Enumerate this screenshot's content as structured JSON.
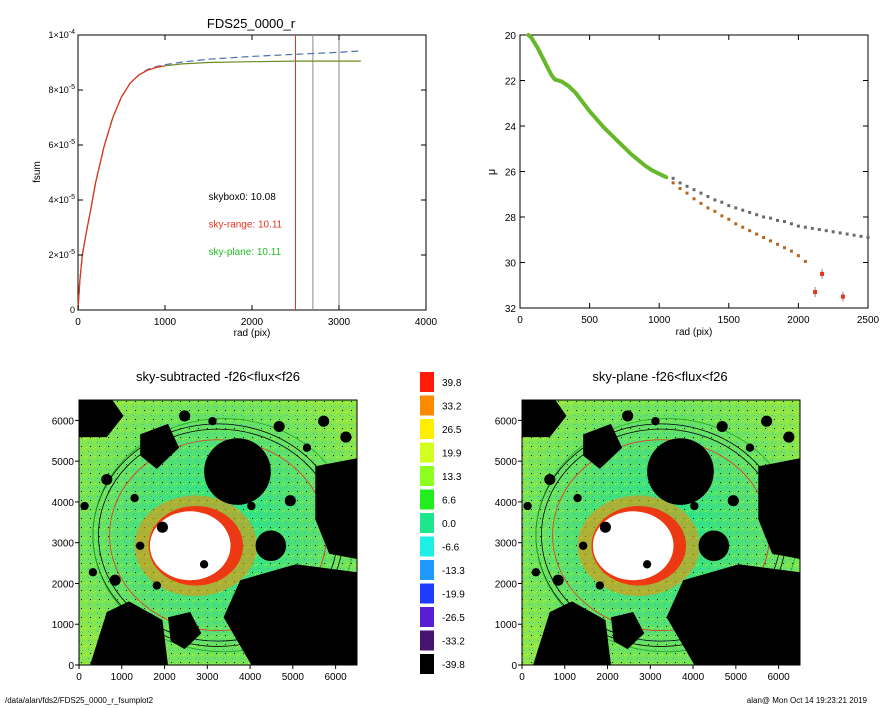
{
  "footer": {
    "path": "/data/alan/fds2/FDS25_0000_r_fsumplot2",
    "user_time": "alan@  Mon Oct 14 19:23:21 2019"
  },
  "chart_data": [
    {
      "type": "line",
      "title": "FDS25_0000_r",
      "xlabel": "rad (pix)",
      "ylabel": "fsum",
      "xlim": [
        0,
        4000
      ],
      "ylim": [
        0,
        0.0001
      ],
      "x_ticks": [
        "0",
        "1000",
        "2000",
        "3000",
        "4000"
      ],
      "y_ticks": [
        {
          "value": 0,
          "label": "0"
        },
        {
          "value": 2e-05,
          "label": "2×10",
          "exp": "-5"
        },
        {
          "value": 4e-05,
          "label": "4×10",
          "exp": "-5"
        },
        {
          "value": 6e-05,
          "label": "6×10",
          "exp": "-5"
        },
        {
          "value": 8e-05,
          "label": "8×10",
          "exp": "-5"
        },
        {
          "value": 0.0001,
          "label": "1×10",
          "exp": "-4"
        }
      ],
      "series": [
        {
          "style": "dashed",
          "color": "#4a6fb5",
          "x": [
            0,
            20,
            50,
            100,
            150,
            200,
            300,
            400,
            500,
            600,
            700,
            800,
            900,
            1000,
            1200,
            1500,
            2000,
            2500,
            3000,
            3250
          ],
          "y": [
            0,
            1e-05,
            2e-05,
            2.9e-05,
            3.7e-05,
            4.6e-05,
            5.95e-05,
            7e-05,
            7.75e-05,
            8.25e-05,
            8.55e-05,
            8.75e-05,
            8.85e-05,
            8.92e-05,
            9.02e-05,
            9.12e-05,
            9.22e-05,
            9.3e-05,
            9.37e-05,
            9.42e-05
          ]
        },
        {
          "style": "solid",
          "color": "#6b8e23",
          "x": [
            0,
            20,
            50,
            100,
            150,
            200,
            300,
            400,
            500,
            600,
            700,
            800,
            900,
            1000,
            1200,
            1500,
            2000,
            2500,
            3000,
            3250
          ],
          "y": [
            0,
            1e-05,
            2e-05,
            2.9e-05,
            3.7e-05,
            4.6e-05,
            5.95e-05,
            7e-05,
            7.75e-05,
            8.25e-05,
            8.55e-05,
            8.72e-05,
            8.82e-05,
            8.88e-05,
            8.95e-05,
            9e-05,
            9.03e-05,
            9.05e-05,
            9.05e-05,
            9.05e-05
          ]
        },
        {
          "style": "solid",
          "color": "#e8321e",
          "x": [
            0,
            20,
            50,
            100,
            150,
            200,
            300,
            400,
            500,
            600,
            700,
            800,
            900,
            1000
          ],
          "y": [
            0,
            1e-05,
            2e-05,
            2.9e-05,
            3.7e-05,
            4.6e-05,
            5.95e-05,
            7e-05,
            7.75e-05,
            8.25e-05,
            8.55e-05,
            8.72e-05,
            8.82e-05,
            8.88e-05
          ]
        }
      ],
      "vlines": [
        {
          "x": 2500,
          "color": "#e8321e"
        },
        {
          "x": 2700,
          "color": "#888888"
        },
        {
          "x": 3000,
          "color": "#888888"
        }
      ],
      "annotations": [
        {
          "text": "skybox0: 10.08",
          "color": "#000000",
          "x": 1500,
          "y": 4e-05
        },
        {
          "text": "sky-range: 10.11",
          "color": "#e8321e",
          "x": 1500,
          "y": 3e-05
        },
        {
          "text": "sky-plane: 10.11",
          "color": "#22c022",
          "x": 1500,
          "y": 2e-05
        }
      ]
    },
    {
      "type": "scatter",
      "title": "",
      "xlabel": "rad (pix)",
      "ylabel": "μ",
      "xlim": [
        0,
        2500
      ],
      "ylim": [
        32,
        20
      ],
      "x_ticks": [
        "0",
        "500",
        "1000",
        "1500",
        "2000",
        "2500"
      ],
      "y_ticks": [
        "20",
        "22",
        "24",
        "26",
        "28",
        "30",
        "32"
      ],
      "series": [
        {
          "color": "#6a6a6a",
          "marker": "square",
          "x": [
            1100,
            1150,
            1200,
            1250,
            1300,
            1350,
            1400,
            1450,
            1500,
            1550,
            1600,
            1650,
            1700,
            1750,
            1800,
            1850,
            1900,
            1950,
            2000,
            2050,
            2100,
            2150,
            2200,
            2250,
            2300,
            2350,
            2400,
            2450,
            2500
          ],
          "y": [
            26.3,
            26.5,
            26.65,
            26.8,
            26.95,
            27.1,
            27.25,
            27.35,
            27.5,
            27.6,
            27.7,
            27.8,
            27.9,
            28.0,
            28.05,
            28.15,
            28.2,
            28.3,
            28.4,
            28.45,
            28.5,
            28.55,
            28.6,
            28.65,
            28.7,
            28.75,
            28.8,
            28.85,
            28.9
          ]
        },
        {
          "color": "#b5651d",
          "marker": "square",
          "x": [
            1100,
            1150,
            1200,
            1250,
            1300,
            1350,
            1400,
            1450,
            1500,
            1550,
            1600,
            1650,
            1700,
            1750,
            1800,
            1850,
            1900,
            1950,
            2000,
            2050
          ],
          "y": [
            26.5,
            26.75,
            26.95,
            27.2,
            27.4,
            27.6,
            27.75,
            27.95,
            28.1,
            28.3,
            28.45,
            28.6,
            28.75,
            28.9,
            29.05,
            29.2,
            29.35,
            29.5,
            29.7,
            29.95
          ]
        },
        {
          "color": "#66b82a",
          "marker": "line",
          "x": [
            60,
            80,
            100,
            125,
            150,
            175,
            200,
            225,
            250,
            275,
            300,
            350,
            400,
            450,
            500,
            550,
            600,
            650,
            700,
            750,
            800,
            850,
            900,
            950,
            1000,
            1050
          ],
          "y": [
            20.0,
            20.1,
            20.3,
            20.55,
            20.85,
            21.15,
            21.45,
            21.75,
            21.95,
            22.0,
            22.05,
            22.25,
            22.55,
            22.95,
            23.35,
            23.7,
            24.05,
            24.35,
            24.65,
            24.95,
            25.25,
            25.5,
            25.75,
            25.95,
            26.1,
            26.25
          ]
        }
      ],
      "outliers": [
        {
          "x": 2120,
          "y": 31.3
        },
        {
          "x": 2170,
          "y": 30.5
        },
        {
          "x": 2320,
          "y": 31.5
        }
      ]
    },
    {
      "type": "heatmap",
      "title": "sky-subtracted -f26<flux<f26",
      "xlim": [
        0,
        6500
      ],
      "ylim": [
        0,
        6500
      ],
      "x_ticks": [
        "0",
        "1000",
        "2000",
        "3000",
        "4000",
        "5000",
        "6000"
      ],
      "y_ticks": [
        "0",
        "1000",
        "2000",
        "3000",
        "4000",
        "5000",
        "6000"
      ]
    },
    {
      "type": "heatmap",
      "title": "sky-plane -f26<flux<f26",
      "xlim": [
        0,
        6500
      ],
      "ylim": [
        0,
        6500
      ],
      "x_ticks": [
        "0",
        "1000",
        "2000",
        "3000",
        "4000",
        "5000",
        "6000"
      ],
      "y_ticks": [
        "0",
        "1000",
        "2000",
        "3000",
        "4000",
        "5000",
        "6000"
      ]
    }
  ],
  "colorbar": [
    {
      "label": "39.8",
      "color": "#ff1a0a"
    },
    {
      "label": "33.2",
      "color": "#ff8a00"
    },
    {
      "label": "26.5",
      "color": "#ffee00"
    },
    {
      "label": "19.9",
      "color": "#d2ff1e"
    },
    {
      "label": "13.3",
      "color": "#8cff1e"
    },
    {
      "label": "6.6",
      "color": "#22ee1e"
    },
    {
      "label": "0.0",
      "color": "#1ee68c"
    },
    {
      "label": "-6.6",
      "color": "#1ef0e6"
    },
    {
      "label": "-13.3",
      "color": "#1e9aff"
    },
    {
      "label": "-19.9",
      "color": "#1e3cff"
    },
    {
      "label": "-26.5",
      "color": "#5a1ed2"
    },
    {
      "label": "-33.2",
      "color": "#46146e"
    },
    {
      "label": "-39.8",
      "color": "#000000"
    }
  ]
}
